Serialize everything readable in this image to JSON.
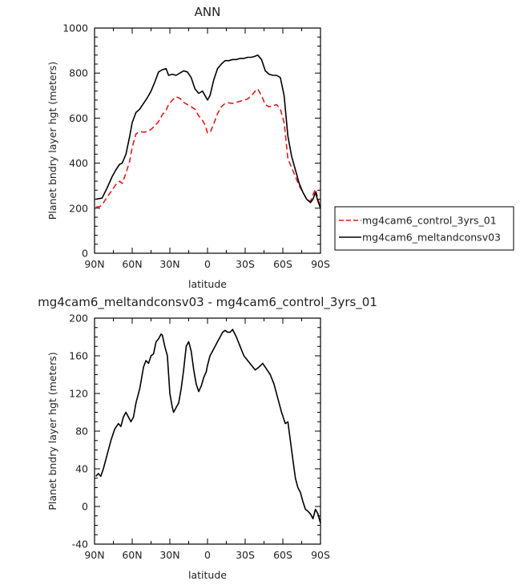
{
  "chart_data": [
    {
      "type": "line",
      "title": "ANN",
      "xlabel": "latitude",
      "ylabel": "Planet bndry layer hgt (meters)",
      "xlim": [
        90,
        -90
      ],
      "ylim": [
        0,
        1000
      ],
      "x_ticks": [
        {
          "value": 90,
          "label": "90N"
        },
        {
          "value": 60,
          "label": "60N"
        },
        {
          "value": 30,
          "label": "30N"
        },
        {
          "value": 0,
          "label": "0"
        },
        {
          "value": -30,
          "label": "30S"
        },
        {
          "value": -60,
          "label": "60S"
        },
        {
          "value": -90,
          "label": "90S"
        }
      ],
      "y_ticks": [
        0,
        200,
        400,
        600,
        800,
        1000
      ],
      "legend": {
        "placement": "right-outside"
      },
      "series": [
        {
          "name": "mg4cam6_control_3yrs_01",
          "color": "#e41a1c",
          "dash": "dashed",
          "x": [
            89,
            86,
            84,
            80,
            76,
            73,
            70,
            68,
            65,
            62,
            60,
            57,
            54,
            51,
            48,
            45,
            42,
            39,
            36,
            33,
            31,
            28,
            25,
            22,
            19,
            16,
            13,
            10,
            7,
            4,
            2,
            0,
            -2,
            -5,
            -8,
            -11,
            -14,
            -17,
            -20,
            -23,
            -26,
            -29,
            -32,
            -35,
            -38,
            -40,
            -43,
            -46,
            -49,
            -52,
            -55,
            -58,
            -61,
            -64,
            -67,
            -70,
            -73,
            -76,
            -79,
            -82,
            -84,
            -86,
            -88,
            -90
          ],
          "y": [
            205,
            207,
            215,
            250,
            280,
            305,
            320,
            310,
            355,
            410,
            470,
            530,
            540,
            538,
            540,
            550,
            565,
            585,
            615,
            635,
            660,
            680,
            695,
            688,
            670,
            660,
            650,
            640,
            610,
            590,
            570,
            535,
            535,
            575,
            620,
            650,
            665,
            668,
            665,
            670,
            675,
            680,
            685,
            700,
            720,
            730,
            700,
            660,
            650,
            655,
            660,
            640,
            580,
            420,
            380,
            340,
            300,
            270,
            240,
            230,
            260,
            285,
            240,
            200
          ]
        },
        {
          "name": "mg4cam6_meltandconsv03",
          "color": "#000000",
          "dash": "solid",
          "x": [
            89,
            86,
            84,
            80,
            76,
            73,
            70,
            68,
            65,
            62,
            60,
            57,
            54,
            51,
            48,
            45,
            42,
            39,
            36,
            33,
            31,
            28,
            25,
            22,
            19,
            16,
            13,
            10,
            7,
            4,
            2,
            0,
            -2,
            -5,
            -8,
            -11,
            -14,
            -17,
            -20,
            -23,
            -26,
            -29,
            -32,
            -35,
            -38,
            -40,
            -43,
            -46,
            -49,
            -52,
            -55,
            -58,
            -61,
            -64,
            -67,
            -70,
            -73,
            -76,
            -79,
            -82,
            -84,
            -86,
            -88,
            -90
          ],
          "y": [
            240,
            243,
            245,
            290,
            340,
            370,
            395,
            400,
            440,
            520,
            580,
            625,
            640,
            665,
            690,
            720,
            760,
            805,
            815,
            820,
            790,
            795,
            790,
            800,
            810,
            805,
            780,
            730,
            710,
            720,
            700,
            680,
            700,
            770,
            820,
            840,
            855,
            855,
            860,
            860,
            865,
            865,
            870,
            870,
            875,
            880,
            860,
            810,
            795,
            790,
            790,
            780,
            700,
            520,
            430,
            370,
            310,
            270,
            240,
            225,
            240,
            270,
            230,
            200
          ]
        }
      ]
    },
    {
      "type": "line",
      "title": "mg4cam6_meltandconsv03 - mg4cam6_control_3yrs_01",
      "xlabel": "latitude",
      "ylabel": "Planet bndry layer hgt (meters)",
      "xlim": [
        90,
        -90
      ],
      "ylim": [
        -40,
        200
      ],
      "x_ticks": [
        {
          "value": 90,
          "label": "90N"
        },
        {
          "value": 60,
          "label": "60N"
        },
        {
          "value": 30,
          "label": "30N"
        },
        {
          "value": 0,
          "label": "0"
        },
        {
          "value": -30,
          "label": "30S"
        },
        {
          "value": -60,
          "label": "60S"
        },
        {
          "value": -90,
          "label": "90S"
        }
      ],
      "y_ticks": [
        -40,
        0,
        40,
        80,
        120,
        160,
        200
      ],
      "series": [
        {
          "color": "#000000",
          "dash": "solid",
          "x": [
            89,
            87,
            85,
            83,
            80,
            77,
            74,
            71,
            69,
            67,
            65,
            63,
            61,
            59,
            57,
            54,
            51,
            49,
            47,
            45,
            43,
            41,
            39,
            37,
            36,
            34,
            32,
            30,
            28,
            27,
            25,
            23,
            21,
            19,
            17,
            15,
            13,
            11,
            9,
            7,
            5,
            3,
            1,
            0,
            -2,
            -4,
            -6,
            -8,
            -10,
            -12,
            -14,
            -16,
            -18,
            -20,
            -23,
            -26,
            -29,
            -32,
            -35,
            -38,
            -41,
            -44,
            -47,
            -50,
            -53,
            -56,
            -59,
            -62,
            -64,
            -66,
            -68,
            -70,
            -72,
            -74,
            -76,
            -78,
            -80,
            -82,
            -84,
            -86,
            -88,
            -90
          ],
          "y": [
            32,
            35,
            32,
            40,
            55,
            70,
            82,
            88,
            85,
            95,
            100,
            95,
            90,
            95,
            110,
            125,
            148,
            155,
            152,
            160,
            162,
            175,
            178,
            183,
            182,
            170,
            160,
            120,
            105,
            100,
            105,
            110,
            125,
            145,
            170,
            175,
            165,
            145,
            130,
            122,
            128,
            137,
            143,
            150,
            160,
            165,
            170,
            175,
            180,
            185,
            187,
            185,
            185,
            188,
            180,
            170,
            160,
            155,
            150,
            145,
            148,
            152,
            146,
            140,
            130,
            115,
            100,
            88,
            90,
            70,
            50,
            30,
            20,
            15,
            5,
            -3,
            -5,
            -8,
            -13,
            -3,
            -8,
            -18
          ]
        }
      ]
    }
  ]
}
